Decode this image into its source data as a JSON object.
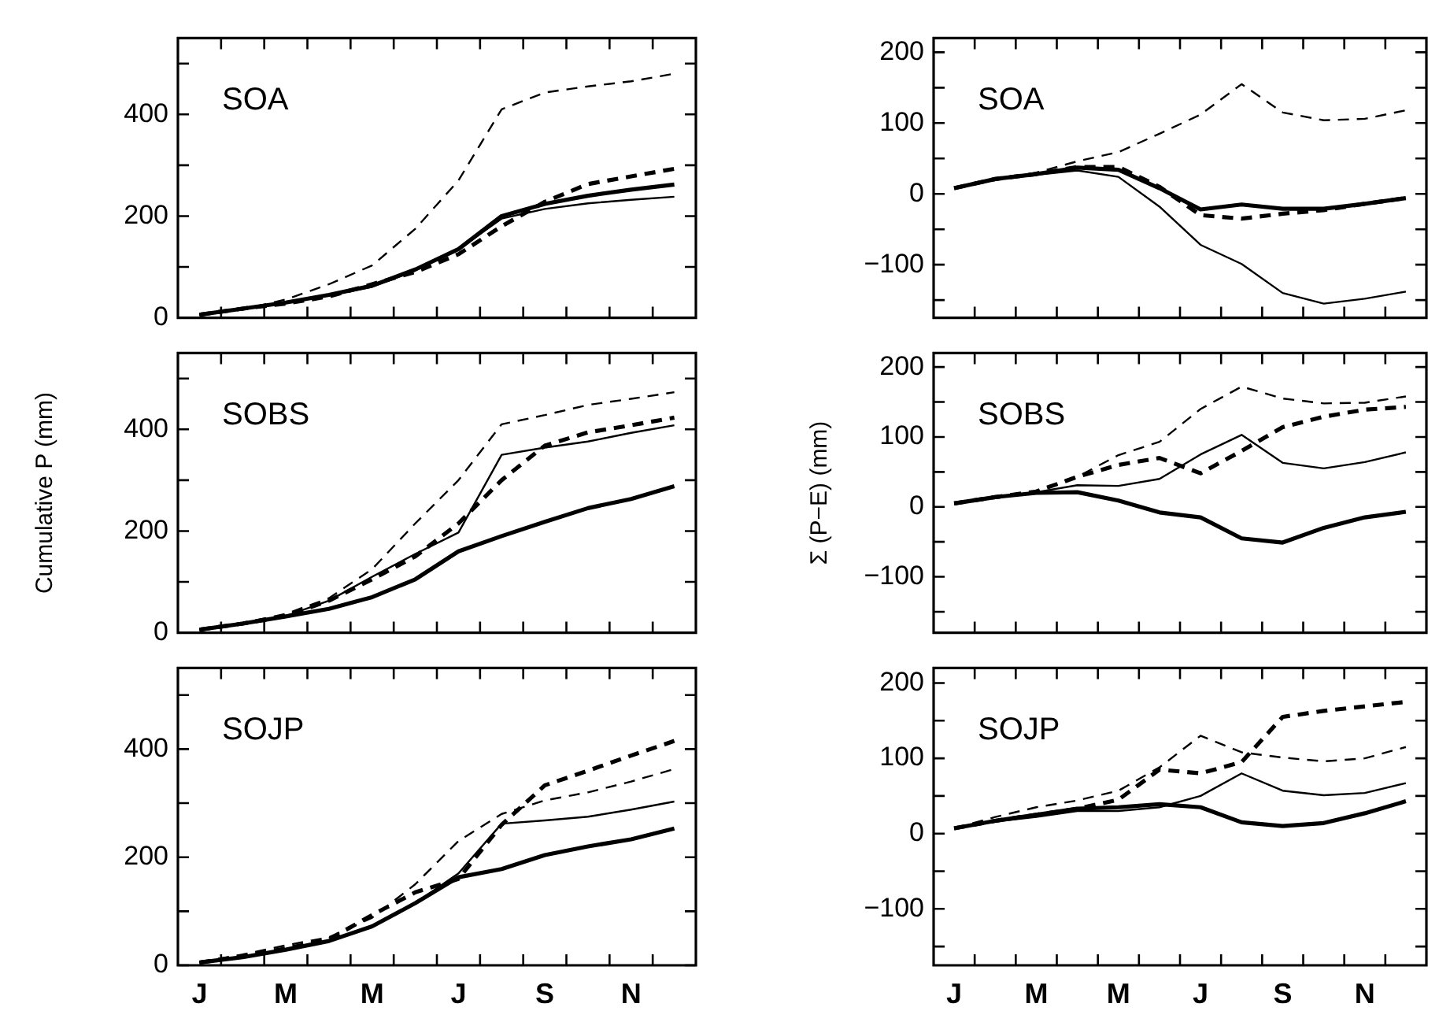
{
  "chart_data": [
    {
      "type": "line",
      "annotations": [
        "SOA"
      ],
      "categories": [
        null,
        null,
        null,
        null,
        null,
        null,
        null,
        null,
        null,
        null,
        null,
        null
      ],
      "ylim": [
        0,
        550
      ],
      "yticks": [
        0,
        {
          "value": 100,
          "label": null
        },
        200,
        {
          "value": 300,
          "label": null
        },
        400,
        {
          "value": 500,
          "label": null
        }
      ],
      "tick_labels": "y",
      "marker": "none",
      "series": [
        {
          "color": "#000000",
          "line_style": "solid",
          "values": [
            6,
            18,
            30,
            45,
            63,
            95,
            135,
            200,
            224,
            240,
            252,
            262
          ]
        },
        {
          "color": "#000000",
          "line_style": "solid",
          "values": [
            6,
            18,
            30,
            44,
            61,
            93,
            135,
            195,
            214,
            225,
            232,
            238
          ]
        },
        {
          "color": "#000000",
          "line_style": "dashed",
          "values": [
            6,
            18,
            28,
            42,
            66,
            90,
            125,
            180,
            228,
            263,
            278,
            293
          ]
        },
        {
          "color": "#000000",
          "line_style": "dashed",
          "values": [
            6,
            16,
            36,
            66,
            103,
            175,
            270,
            410,
            443,
            455,
            465,
            480
          ]
        }
      ]
    },
    {
      "type": "line",
      "annotations": [
        "SOA"
      ],
      "categories": [
        null,
        null,
        null,
        null,
        null,
        null,
        null,
        null,
        null,
        null,
        null,
        null
      ],
      "ylim": [
        -175,
        220
      ],
      "yticks": [
        {
          "value": -150,
          "label": null
        },
        {
          "value": -100,
          "label": "−100"
        },
        {
          "value": -50,
          "label": null
        },
        0,
        {
          "value": 50,
          "label": null
        },
        100,
        {
          "value": 150,
          "label": null
        },
        200
      ],
      "tick_labels": "y",
      "marker": "none",
      "series": [
        {
          "color": "#000000",
          "line_style": "solid",
          "values": [
            8,
            21,
            28,
            37,
            34,
            8,
            -22,
            -15,
            -21,
            -21,
            -14,
            -6
          ]
        },
        {
          "color": "#000000",
          "line_style": "solid",
          "values": [
            8,
            21,
            27,
            33,
            24,
            -18,
            -72,
            -99,
            -140,
            -155,
            -148,
            -138
          ]
        },
        {
          "color": "#000000",
          "line_style": "dashed",
          "values": [
            8,
            21,
            28,
            38,
            38,
            10,
            -30,
            -35,
            -28,
            -23,
            -14,
            -6
          ]
        },
        {
          "color": "#000000",
          "line_style": "dashed",
          "values": [
            8,
            21,
            30,
            46,
            59,
            85,
            112,
            155,
            115,
            104,
            106,
            118
          ]
        }
      ]
    },
    {
      "type": "line",
      "annotations": [
        "SOBS"
      ],
      "ylabel": "Cumulative P (mm)",
      "categories": [
        null,
        null,
        null,
        null,
        null,
        null,
        null,
        null,
        null,
        null,
        null,
        null
      ],
      "ylim": [
        0,
        550
      ],
      "yticks": [
        0,
        {
          "value": 100,
          "label": null
        },
        200,
        {
          "value": 300,
          "label": null
        },
        400,
        {
          "value": 500,
          "label": null
        }
      ],
      "tick_labels": "y",
      "marker": "none",
      "series": [
        {
          "color": "#000000",
          "line_style": "solid",
          "values": [
            6,
            18,
            32,
            47,
            70,
            105,
            160,
            190,
            218,
            245,
            263,
            288
          ]
        },
        {
          "color": "#000000",
          "line_style": "solid",
          "values": [
            6,
            18,
            33,
            63,
            110,
            155,
            197,
            350,
            364,
            376,
            393,
            408
          ]
        },
        {
          "color": "#000000",
          "line_style": "dashed",
          "values": [
            6,
            18,
            33,
            63,
            105,
            150,
            215,
            300,
            368,
            394,
            408,
            423
          ]
        },
        {
          "color": "#000000",
          "line_style": "dashed",
          "values": [
            6,
            19,
            37,
            68,
            125,
            215,
            300,
            410,
            428,
            448,
            460,
            473
          ]
        }
      ]
    },
    {
      "type": "line",
      "annotations": [
        "SOBS"
      ],
      "ylabel": "Σ (P−E) (mm)",
      "categories": [
        null,
        null,
        null,
        null,
        null,
        null,
        null,
        null,
        null,
        null,
        null,
        null
      ],
      "ylim": [
        -180,
        220
      ],
      "yticks": [
        {
          "value": -150,
          "label": null
        },
        {
          "value": -100,
          "label": "−100"
        },
        {
          "value": -50,
          "label": null
        },
        0,
        {
          "value": 50,
          "label": null
        },
        100,
        {
          "value": 150,
          "label": null
        },
        200
      ],
      "tick_labels": "y",
      "marker": "none",
      "series": [
        {
          "color": "#000000",
          "line_style": "solid",
          "values": [
            5,
            14,
            20,
            21,
            9,
            -8,
            -15,
            -45,
            -51,
            -30,
            -15,
            -7
          ]
        },
        {
          "color": "#000000",
          "line_style": "solid",
          "values": [
            5,
            14,
            21,
            31,
            30,
            40,
            75,
            103,
            63,
            55,
            64,
            78
          ]
        },
        {
          "color": "#000000",
          "line_style": "dashed",
          "values": [
            5,
            14,
            22,
            43,
            60,
            70,
            48,
            80,
            114,
            129,
            139,
            143
          ]
        },
        {
          "color": "#000000",
          "line_style": "dashed",
          "values": [
            5,
            14,
            22,
            43,
            74,
            93,
            140,
            172,
            155,
            148,
            149,
            158
          ]
        }
      ]
    },
    {
      "type": "line",
      "annotations": [
        "SOJP"
      ],
      "categories": [
        "J",
        null,
        "M",
        null,
        "M",
        null,
        "J",
        null,
        "S",
        null,
        "N",
        null
      ],
      "ylim": [
        0,
        550
      ],
      "yticks": [
        0,
        {
          "value": 100,
          "label": null
        },
        200,
        {
          "value": 300,
          "label": null
        },
        400,
        {
          "value": 500,
          "label": null
        }
      ],
      "marker": "none",
      "series": [
        {
          "color": "#000000",
          "line_style": "solid",
          "values": [
            5,
            15,
            29,
            45,
            72,
            115,
            163,
            178,
            204,
            220,
            233,
            253
          ]
        },
        {
          "color": "#000000",
          "line_style": "solid",
          "values": [
            5,
            15,
            29,
            45,
            72,
            115,
            170,
            262,
            268,
            275,
            288,
            303
          ]
        },
        {
          "color": "#000000",
          "line_style": "dashed",
          "values": [
            5,
            17,
            31,
            48,
            93,
            135,
            160,
            260,
            333,
            360,
            388,
            415
          ]
        },
        {
          "color": "#000000",
          "line_style": "dashed",
          "values": [
            6,
            20,
            37,
            52,
            88,
            150,
            230,
            280,
            305,
            320,
            340,
            363
          ]
        }
      ]
    },
    {
      "type": "line",
      "annotations": [
        "SOJP"
      ],
      "categories": [
        "J",
        null,
        "M",
        null,
        "M",
        null,
        "J",
        null,
        "S",
        null,
        "N",
        null
      ],
      "ylim": [
        -175,
        220
      ],
      "yticks": [
        {
          "value": -150,
          "label": null
        },
        {
          "value": -100,
          "label": "−100"
        },
        {
          "value": -50,
          "label": null
        },
        0,
        {
          "value": 50,
          "label": null
        },
        100,
        {
          "value": 150,
          "label": null
        },
        200
      ],
      "marker": "none",
      "series": [
        {
          "color": "#000000",
          "line_style": "solid",
          "values": [
            7,
            17,
            25,
            33,
            35,
            39,
            35,
            15,
            10,
            14,
            27,
            43
          ]
        },
        {
          "color": "#000000",
          "line_style": "solid",
          "values": [
            7,
            16,
            22,
            30,
            30,
            35,
            50,
            80,
            57,
            51,
            54,
            67
          ]
        },
        {
          "color": "#000000",
          "line_style": "dashed",
          "values": [
            7,
            17,
            25,
            33,
            45,
            85,
            80,
            95,
            155,
            163,
            169,
            175
          ]
        },
        {
          "color": "#000000",
          "line_style": "dashed",
          "values": [
            7,
            22,
            35,
            44,
            57,
            88,
            130,
            108,
            101,
            96,
            100,
            115
          ]
        }
      ]
    }
  ]
}
